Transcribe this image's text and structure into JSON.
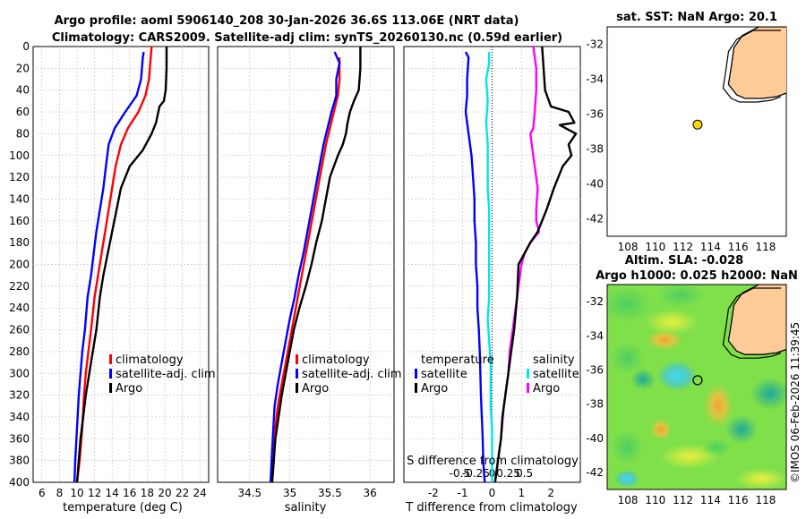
{
  "header": {
    "title_line1": "Argo profile: aoml 5906140_208 30-Jan-2026 36.6S 113.06E (NRT data)",
    "title_line2": "Climatology: CARS2009. Satellite-adj clim: synTS_20260130.nc (0.59d earlier)"
  },
  "colors": {
    "climatology": "#ff0000",
    "satellite_adj": "#0000ff",
    "argo": "#000000",
    "satellite_salinity": "#00e5ee",
    "argo_salinity_diff": "#ff00ff",
    "land": "#ffcc99",
    "marker": "#ffd700"
  },
  "chart_data": [
    {
      "id": "temperature",
      "type": "line",
      "xlabel": "temperature (deg C)",
      "ylabel": "",
      "xlim": [
        5,
        25
      ],
      "ylim": [
        0,
        400
      ],
      "x_ticks": [
        6,
        8,
        10,
        12,
        14,
        16,
        18,
        20,
        22,
        24
      ],
      "y_ticks": [
        0,
        20,
        40,
        60,
        80,
        100,
        120,
        140,
        160,
        180,
        200,
        220,
        240,
        260,
        280,
        300,
        320,
        340,
        360,
        380,
        400
      ],
      "legend": [
        "climatology",
        "satellite-adj. clim",
        "Argo"
      ],
      "legend_position": "lower-right",
      "series": [
        {
          "name": "climatology",
          "color_key": "climatology",
          "x": [
            18.5,
            18.4,
            18.2,
            17.8,
            17.0,
            15.8,
            15.0,
            14.4,
            14.0,
            13.6,
            13.2,
            12.8,
            12.4,
            12.0,
            11.6,
            11.3,
            11.0,
            10.8,
            10.6,
            10.3,
            10.0
          ],
          "y": [
            0,
            10,
            30,
            45,
            60,
            75,
            90,
            110,
            130,
            150,
            170,
            190,
            210,
            230,
            260,
            280,
            300,
            320,
            350,
            380,
            400
          ]
        },
        {
          "name": "satellite-adj. clim",
          "color_key": "satellite_adj",
          "x": [
            17.6,
            17.5,
            17.3,
            16.8,
            15.5,
            14.3,
            13.6,
            13.3,
            13.0,
            12.6,
            12.2,
            11.9,
            11.6,
            11.2,
            10.9,
            10.6,
            10.4,
            10.2,
            10.0,
            9.8,
            9.7
          ],
          "y": [
            5,
            10,
            30,
            45,
            60,
            75,
            90,
            110,
            130,
            150,
            170,
            190,
            210,
            230,
            260,
            280,
            300,
            320,
            350,
            380,
            400
          ]
        },
        {
          "name": "Argo",
          "color_key": "argo",
          "x": [
            20.2,
            20.2,
            20.1,
            19.9,
            19.4,
            19.0,
            18.5,
            17.5,
            16.0,
            15.0,
            14.5,
            14.0,
            13.5,
            13.0,
            12.6,
            12.2,
            11.8,
            11.4,
            11.0,
            10.7,
            10.4,
            10.2,
            10.0
          ],
          "y": [
            0,
            20,
            40,
            50,
            55,
            70,
            80,
            95,
            110,
            130,
            150,
            170,
            190,
            210,
            230,
            260,
            280,
            300,
            320,
            340,
            360,
            380,
            400
          ]
        }
      ]
    },
    {
      "id": "salinity",
      "type": "line",
      "xlabel": "salinity",
      "xlim": [
        34.1,
        36.3
      ],
      "ylim": [
        0,
        400
      ],
      "x_ticks": [
        34.5,
        35,
        35.5,
        36
      ],
      "legend": [
        "climatology",
        "satellite-adj. clim",
        "Argo"
      ],
      "legend_position": "lower-right",
      "series": [
        {
          "name": "climatology",
          "color_key": "climatology",
          "x": [
            35.62,
            35.62,
            35.6,
            35.55,
            35.5,
            35.45,
            35.4,
            35.35,
            35.3,
            35.25,
            35.2,
            35.15,
            35.1,
            35.05,
            35.0,
            34.95,
            34.9,
            34.85,
            34.82,
            34.8,
            34.78
          ],
          "y": [
            10,
            30,
            45,
            60,
            75,
            90,
            110,
            130,
            150,
            170,
            190,
            210,
            230,
            250,
            270,
            290,
            310,
            330,
            350,
            380,
            400
          ]
        },
        {
          "name": "satellite-adj. clim",
          "color_key": "satellite_adj",
          "x": [
            35.56,
            35.62,
            35.58,
            35.58,
            35.52,
            35.47,
            35.42,
            35.37,
            35.32,
            35.27,
            35.22,
            35.17,
            35.11,
            35.06,
            35.0,
            34.95,
            34.9,
            34.85,
            34.81,
            34.78,
            34.76
          ],
          "y": [
            5,
            15,
            30,
            45,
            60,
            75,
            90,
            110,
            130,
            150,
            170,
            190,
            210,
            230,
            250,
            270,
            290,
            310,
            330,
            370,
            400
          ]
        },
        {
          "name": "Argo",
          "color_key": "argo",
          "x": [
            35.88,
            35.88,
            35.86,
            35.8,
            35.75,
            35.72,
            35.7,
            35.66,
            35.6,
            35.55,
            35.5,
            35.45,
            35.4,
            35.33,
            35.27,
            35.2,
            35.12,
            35.05,
            35.0,
            34.95,
            34.9,
            34.86,
            34.82,
            34.8,
            34.78
          ],
          "y": [
            0,
            20,
            40,
            50,
            60,
            70,
            80,
            90,
            100,
            110,
            120,
            140,
            160,
            180,
            200,
            220,
            240,
            260,
            280,
            300,
            320,
            340,
            360,
            380,
            400
          ]
        }
      ]
    },
    {
      "id": "differences",
      "type": "line",
      "xlabel": "T difference from climatology",
      "xlabel_top": "S difference from climatology",
      "xlim": [
        -3.0,
        3.0
      ],
      "ylim": [
        0,
        400
      ],
      "x_ticks": [
        -2,
        -1,
        0,
        1,
        2
      ],
      "x_ticks_secondary": [
        "-0.5",
        "-0.25",
        "0",
        "0.25",
        "0.5"
      ],
      "legend_left": {
        "heading": "temperature",
        "entries": [
          "satellite",
          "Argo"
        ]
      },
      "legend_right": {
        "heading": "salinity",
        "entries": [
          "satellite",
          "Argo"
        ]
      },
      "series": [
        {
          "name": "T satellite",
          "color_key": "satellite_adj",
          "x": [
            -0.9,
            -0.8,
            -0.85,
            -0.85,
            -0.9,
            -0.8,
            -0.7,
            -0.65,
            -0.6,
            -0.6,
            -0.55,
            -0.55,
            -0.5,
            -0.5,
            -0.45,
            -0.42,
            -0.4,
            -0.38,
            -0.35,
            -0.32,
            -0.3,
            -0.28,
            -0.25
          ],
          "y": [
            5,
            10,
            30,
            45,
            60,
            80,
            100,
            120,
            140,
            160,
            180,
            200,
            220,
            240,
            260,
            280,
            300,
            320,
            340,
            360,
            380,
            390,
            400
          ]
        },
        {
          "name": "S satellite",
          "color_key": "satellite_salinity",
          "x": [
            -0.1,
            -0.1,
            -0.2,
            -0.15,
            -0.2,
            -0.15,
            -0.15,
            -0.15,
            -0.1,
            -0.1,
            -0.1,
            -0.1,
            -0.1,
            -0.15,
            -0.1,
            -0.05,
            -0.05,
            -0.05,
            0,
            0,
            0
          ],
          "y": [
            5,
            15,
            30,
            50,
            70,
            90,
            110,
            130,
            150,
            170,
            190,
            210,
            230,
            250,
            270,
            290,
            310,
            330,
            350,
            380,
            400
          ]
        },
        {
          "name": "S Argo",
          "color_key": "argo_salinity_diff",
          "x": [
            1.4,
            1.5,
            1.5,
            1.45,
            1.4,
            1.3,
            1.35,
            1.45,
            1.55,
            1.5,
            1.5,
            1.6,
            1.3,
            1.1,
            1.0,
            0.9,
            0.8,
            0.7,
            0.6,
            0.55,
            0.4,
            0.3,
            0.2,
            0.1
          ],
          "y": [
            0,
            20,
            40,
            60,
            75,
            80,
            90,
            110,
            130,
            150,
            160,
            170,
            180,
            190,
            200,
            220,
            240,
            260,
            280,
            300,
            330,
            360,
            380,
            400
          ]
        },
        {
          "name": "T Argo",
          "color_key": "argo",
          "x": [
            1.7,
            1.75,
            1.8,
            2.0,
            2.6,
            2.8,
            2.3,
            2.85,
            2.6,
            2.7,
            2.4,
            2.1,
            1.85,
            1.55,
            1.3,
            1.1,
            0.9,
            0.85,
            0.75,
            0.65,
            0.55,
            0.45,
            0.35,
            0.3,
            0.25,
            0.2,
            0.15,
            0.1
          ],
          "y": [
            0,
            20,
            40,
            55,
            60,
            70,
            72,
            80,
            90,
            100,
            110,
            130,
            150,
            170,
            180,
            190,
            200,
            230,
            260,
            280,
            300,
            320,
            340,
            360,
            370,
            380,
            390,
            400
          ]
        }
      ]
    },
    {
      "id": "sst_map",
      "type": "map",
      "title": "sat. SST: NaN Argo: 20.1",
      "lon_range": [
        106.5,
        119.5
      ],
      "lat_range": [
        -43,
        -31
      ],
      "x_ticks": [
        108,
        110,
        112,
        114,
        116,
        118
      ],
      "y_ticks": [
        -32,
        -34,
        -36,
        -38,
        -40,
        -42
      ],
      "marker": {
        "lon": 113.06,
        "lat": -36.6
      },
      "coast": {
        "lon": [
          119.5,
          117.5,
          116.3,
          115.7,
          115.5,
          115.3,
          115.9,
          116.5,
          117.8,
          118.8,
          119.5
        ],
        "lat": [
          -31,
          -31,
          -31.5,
          -32.2,
          -33.3,
          -34.3,
          -34.9,
          -35.1,
          -35.1,
          -35.0,
          -34.8
        ]
      }
    },
    {
      "id": "sla_map",
      "type": "heatmap",
      "title_line1": "Altim. SLA: -0.028",
      "title_line2": "Argo h1000: 0.025 h2000: NaN",
      "lon_range": [
        106.5,
        119.5
      ],
      "lat_range": [
        -43,
        -31
      ],
      "x_ticks": [
        108,
        110,
        112,
        114,
        116,
        118
      ],
      "y_ticks": [
        -32,
        -34,
        -36,
        -38,
        -40,
        -42
      ],
      "marker": {
        "lon": 113.06,
        "lat": -36.6
      }
    }
  ],
  "footer": {
    "credit": "©IMOS 06-Feb-2026 11:39:45"
  }
}
